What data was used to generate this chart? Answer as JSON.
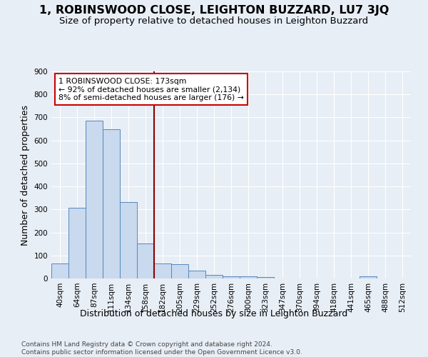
{
  "title": "1, ROBINSWOOD CLOSE, LEIGHTON BUZZARD, LU7 3JQ",
  "subtitle": "Size of property relative to detached houses in Leighton Buzzard",
  "xlabel": "Distribution of detached houses by size in Leighton Buzzard",
  "ylabel": "Number of detached properties",
  "footnote": "Contains HM Land Registry data © Crown copyright and database right 2024.\nContains public sector information licensed under the Open Government Licence v3.0.",
  "bar_labels": [
    "40sqm",
    "64sqm",
    "87sqm",
    "111sqm",
    "134sqm",
    "158sqm",
    "182sqm",
    "205sqm",
    "229sqm",
    "252sqm",
    "276sqm",
    "300sqm",
    "323sqm",
    "347sqm",
    "370sqm",
    "394sqm",
    "418sqm",
    "441sqm",
    "465sqm",
    "488sqm",
    "512sqm"
  ],
  "bar_values": [
    65,
    308,
    685,
    650,
    332,
    152,
    65,
    62,
    35,
    15,
    10,
    10,
    5,
    0,
    0,
    0,
    0,
    0,
    10,
    0,
    0
  ],
  "bar_color": "#c9d9ee",
  "bar_edge_color": "#5588bb",
  "vline_x": 5.5,
  "vline_color": "#8b0000",
  "annotation_text": "1 ROBINSWOOD CLOSE: 173sqm\n← 92% of detached houses are smaller (2,134)\n8% of semi-detached houses are larger (176) →",
  "annotation_box_color": "#ffffff",
  "annotation_box_edge": "#cc0000",
  "ylim": [
    0,
    900
  ],
  "yticks": [
    0,
    100,
    200,
    300,
    400,
    500,
    600,
    700,
    800,
    900
  ],
  "background_color": "#e8eef5",
  "grid_color": "#ffffff",
  "title_fontsize": 11.5,
  "subtitle_fontsize": 9.5,
  "axis_label_fontsize": 9,
  "tick_fontsize": 7.5,
  "annotation_fontsize": 7.8,
  "footnote_fontsize": 6.5
}
